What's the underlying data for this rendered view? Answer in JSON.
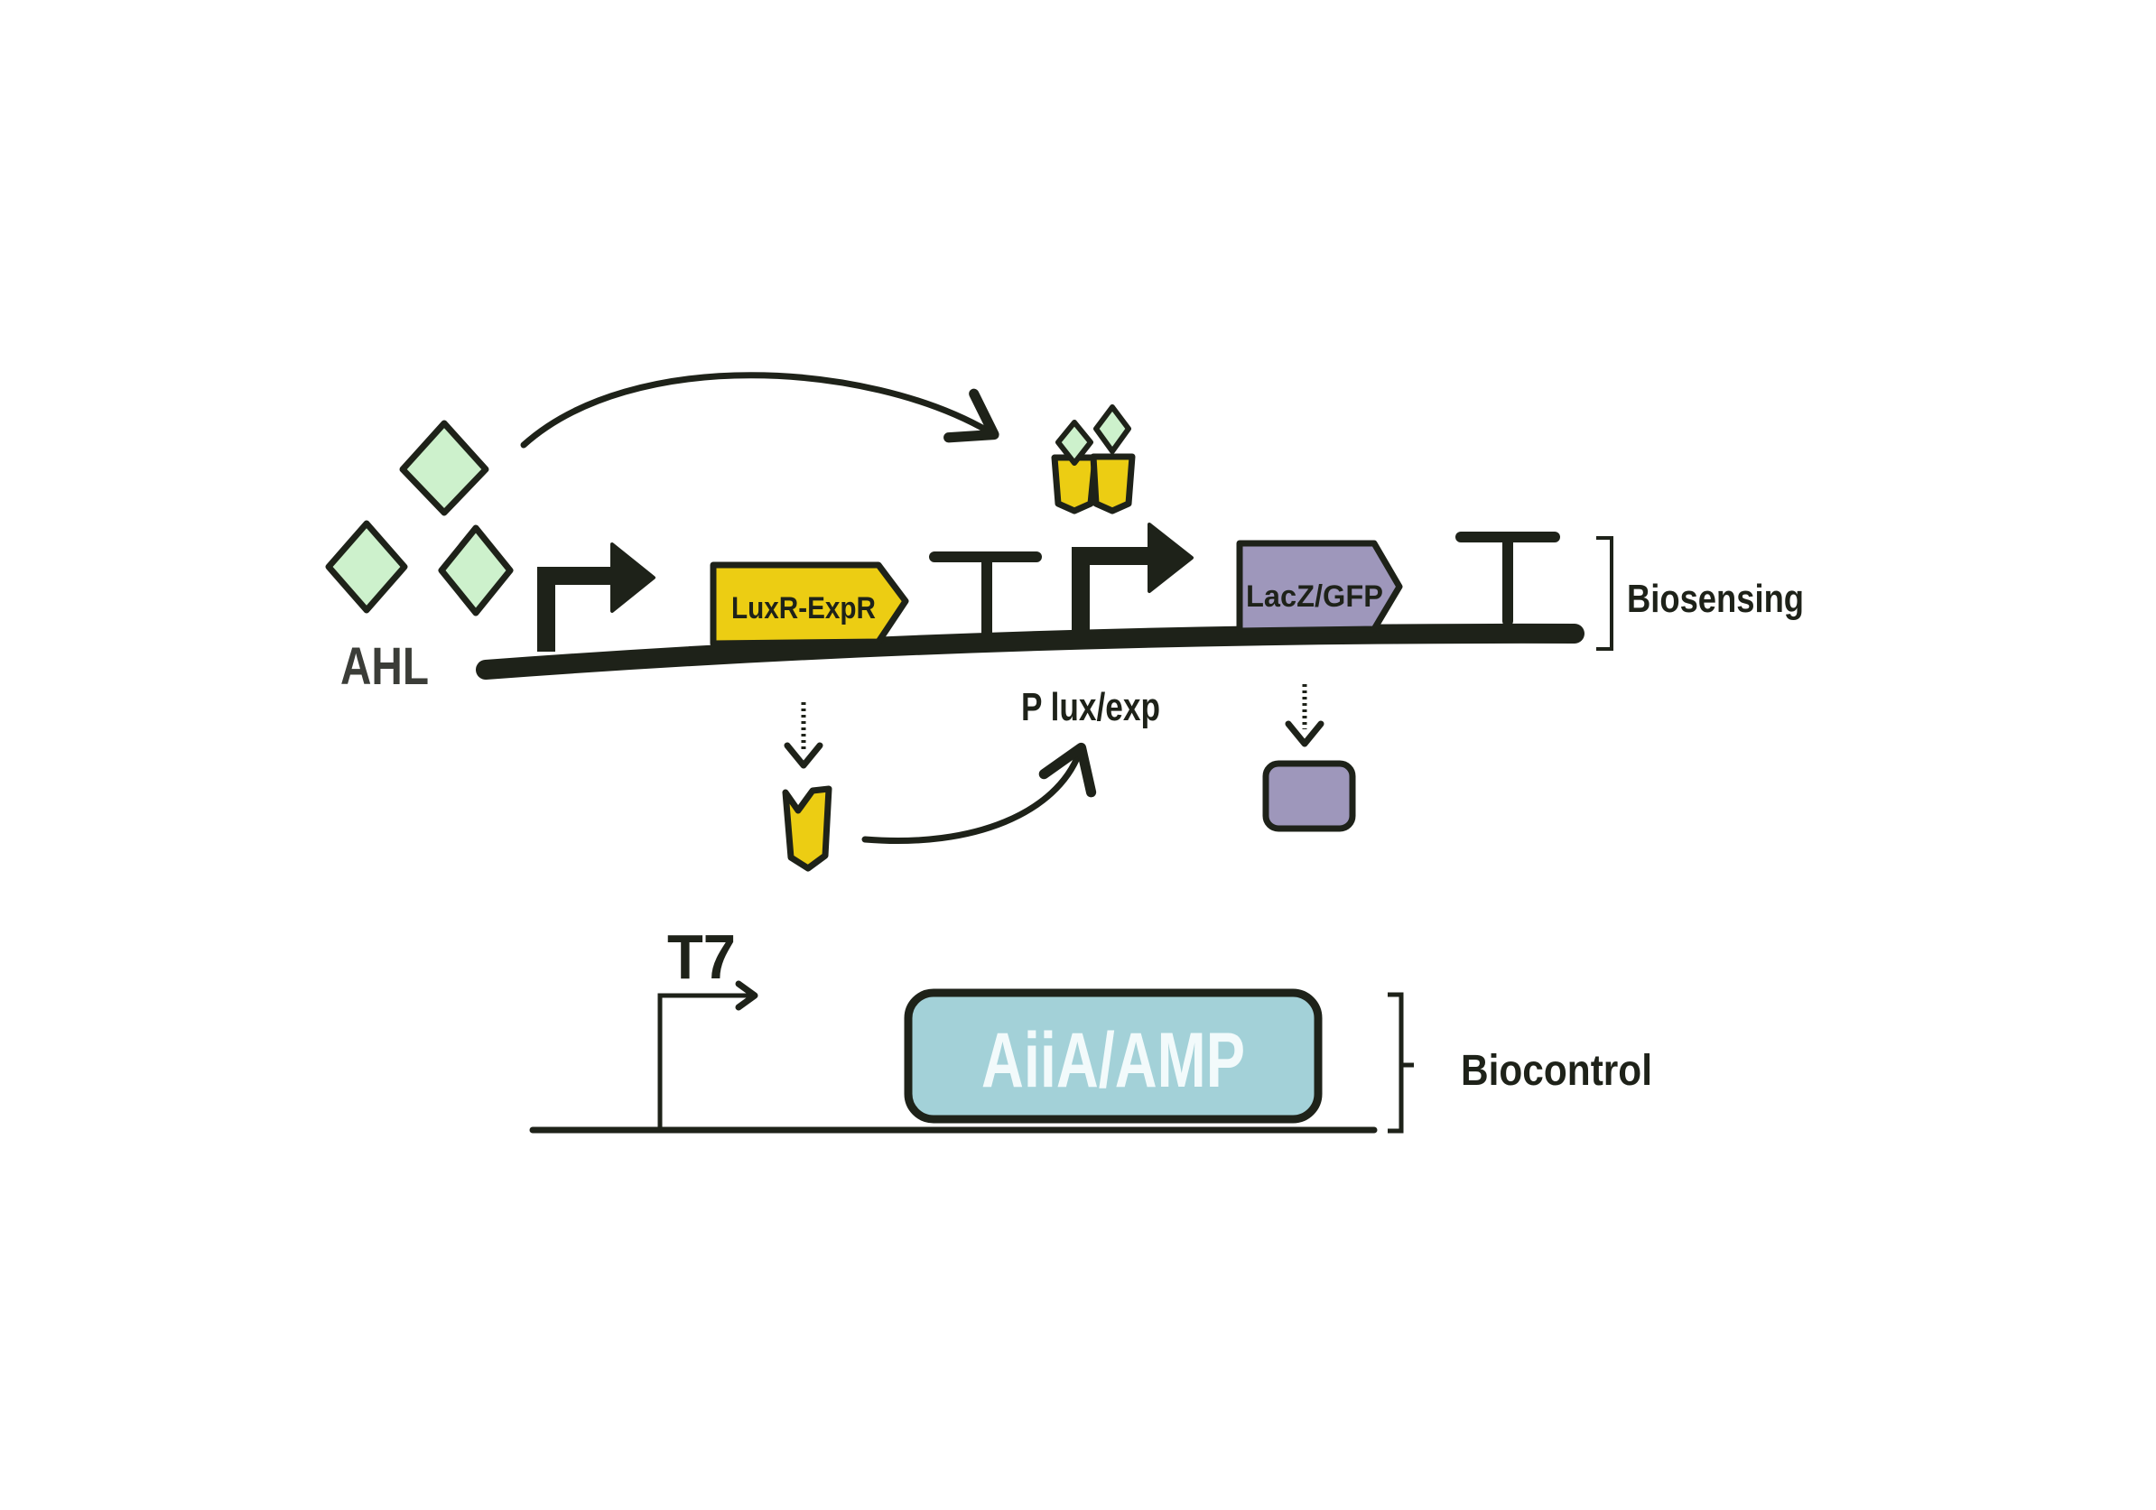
{
  "labels": {
    "ahl": "AHL",
    "luxr_gene": "LuxR-ExpR",
    "reporter_gene": "LacZ/GFP",
    "promoter": "P lux/exp",
    "biosensing": "Biosensing",
    "t7": "T7",
    "effector_gene": "AiiA/AMP",
    "biocontrol": "Biocontrol"
  },
  "colors": {
    "dna": "#1e2219",
    "ahl_fill": "#cdf1cc",
    "luxr_fill": "#eccd13",
    "reporter_fill": "#9e97bb",
    "effector_fill": "#a3d1d8",
    "effector_text": "#f2fafb",
    "outline": "#1e2219"
  },
  "icons": {
    "ahl_molecules": "diamond-icon",
    "luxr_ahl_complex": "protein-dimer-icon",
    "luxr_protein": "protein-monomer-icon",
    "reporter_protein": "reporter-protein-icon",
    "promoter": "promoter-arrow-icon",
    "terminator": "terminator-icon"
  }
}
